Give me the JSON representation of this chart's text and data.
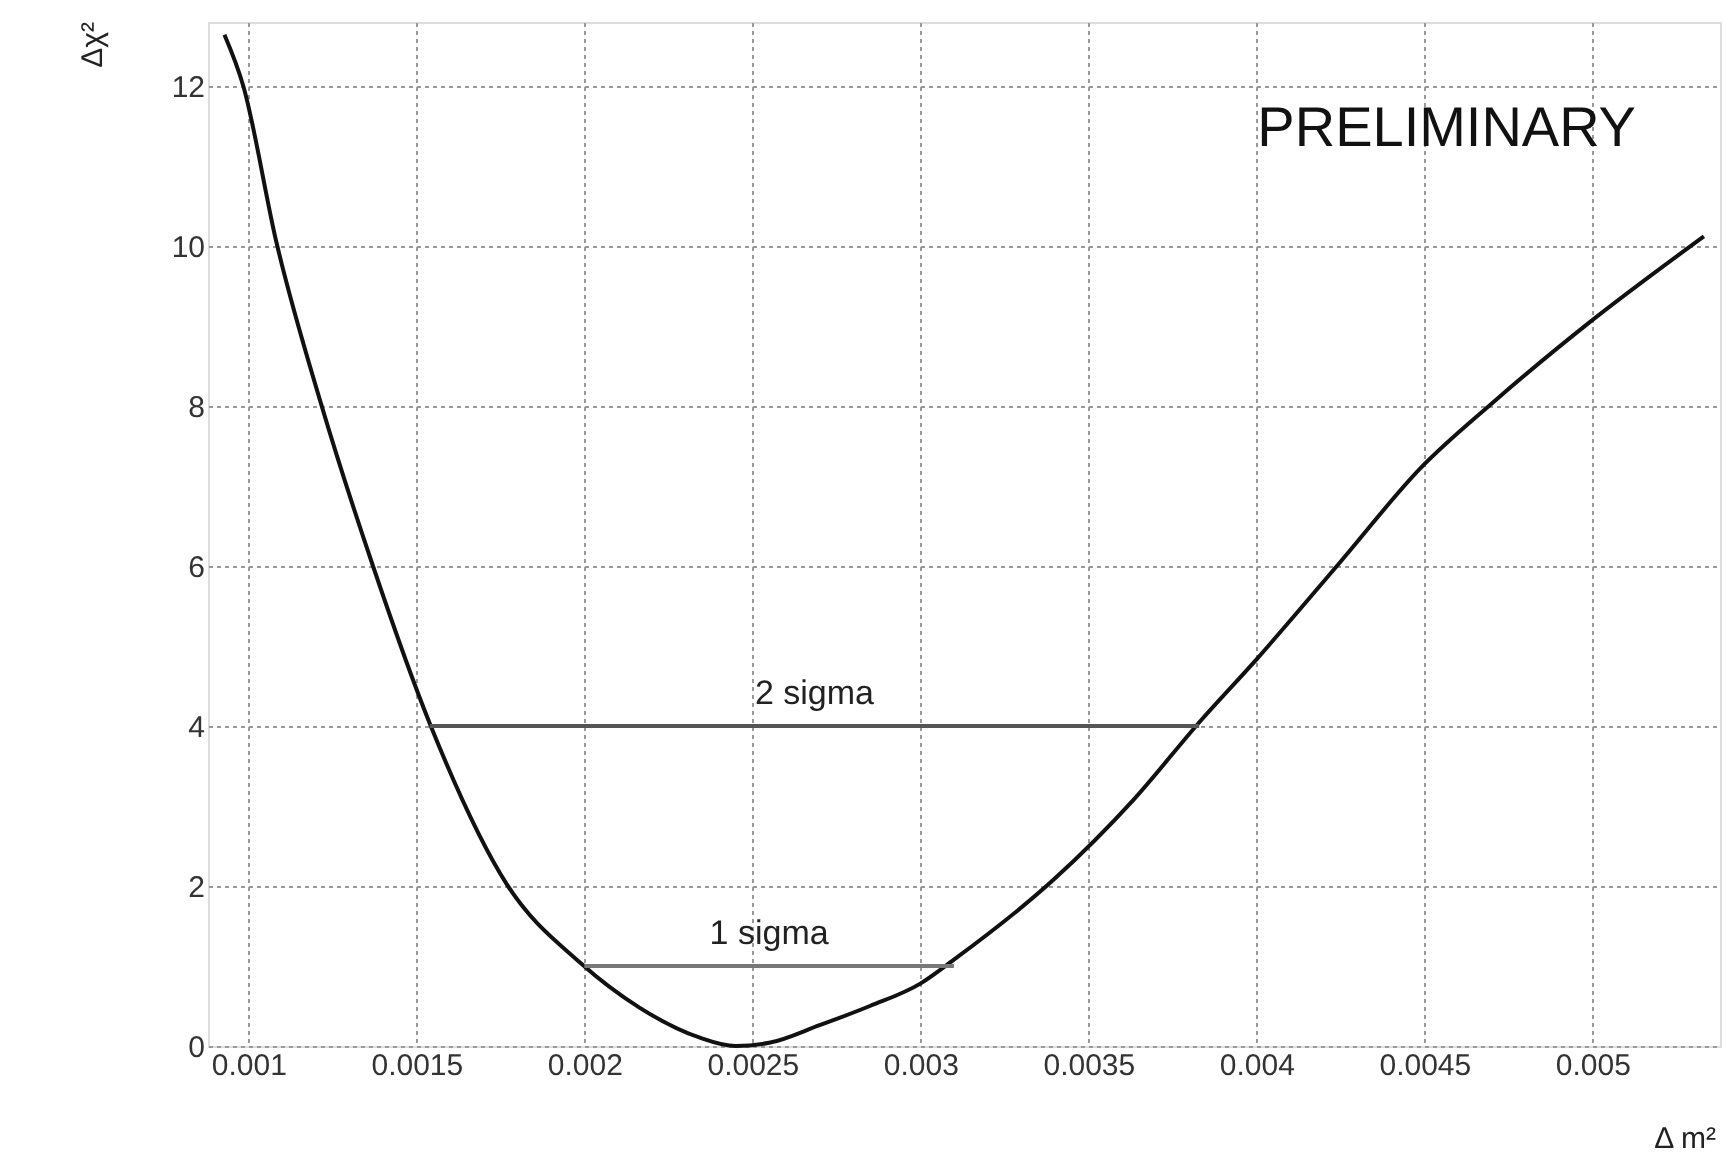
{
  "chart_data": {
    "type": "line",
    "xlabel": "Δ m²",
    "ylabel": "Δχ²",
    "annotations": [
      "PRELIMINARY"
    ],
    "xlim": [
      0.00088,
      0.00538
    ],
    "ylim": [
      0,
      12.8
    ],
    "xticks": [
      0.001,
      0.0015,
      0.002,
      0.0025,
      0.003,
      0.0035,
      0.004,
      0.0045,
      0.005
    ],
    "yticks": [
      0,
      2,
      4,
      6,
      8,
      10,
      12
    ],
    "grid": true,
    "marker": "none",
    "line_style": "solid",
    "series": [
      {
        "color": "#111111",
        "x": [
          0.000929,
          0.000985,
          0.001084,
          0.001217,
          0.001371,
          0.001543,
          0.001768,
          0.001988,
          0.002164,
          0.00234,
          0.00245,
          0.00255,
          0.0027,
          0.00285,
          0.003,
          0.0031,
          0.003397,
          0.003635,
          0.003833,
          0.004002,
          0.00425,
          0.004488,
          0.004706,
          0.004984,
          0.005332
        ],
        "values": [
          12.64,
          12.0,
          10.04,
          8.02,
          6.0,
          4.0,
          2.03,
          1.04,
          0.48,
          0.11,
          0.0,
          0.04,
          0.26,
          0.5,
          0.78,
          1.08,
          2.08,
          3.08,
          4.06,
          4.84,
          6.05,
          7.22,
          8.05,
          9.02,
          10.12
        ]
      },
      {
        "name": "2 sigma",
        "color": "#555555",
        "x": [
          0.00154,
          0.00383
        ],
        "values": [
          4,
          4
        ]
      },
      {
        "name": "1 sigma",
        "color": "#777777",
        "x": [
          0.002,
          0.0031
        ],
        "values": [
          1,
          1
        ]
      }
    ]
  }
}
